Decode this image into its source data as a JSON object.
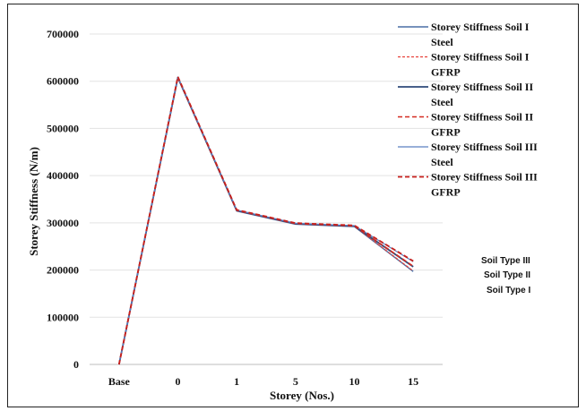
{
  "chart_data": {
    "type": "line",
    "xlabel": "Storey (Nos.)",
    "ylabel": "Storey Stiffness (N/m)",
    "categories": [
      "Base",
      "0",
      "1",
      "5",
      "10",
      "15"
    ],
    "ylim": [
      0,
      700000
    ],
    "yticks": [
      "0",
      "100000",
      "200000",
      "300000",
      "400000",
      "500000",
      "600000",
      "700000"
    ],
    "grid": "horizontal",
    "legend_position": "top-right",
    "series": [
      {
        "name": "Storey Stiffness Soil I Steel",
        "color": "#4a6fa5",
        "dash": "solid",
        "width": 1.4,
        "values": [
          0,
          607000,
          325000,
          297000,
          292000,
          197000
        ]
      },
      {
        "name": "Storey Stiffness Soil I GFRP",
        "color": "#e8423a",
        "dash": "dashed-fine",
        "width": 1.2,
        "values": [
          0,
          607500,
          325500,
          297500,
          292500,
          198000
        ]
      },
      {
        "name": "Storey Stiffness Soil II Steel",
        "color": "#2e4a7a",
        "dash": "solid",
        "width": 1.8,
        "values": [
          0,
          608000,
          326000,
          298000,
          293000,
          207000
        ]
      },
      {
        "name": "Storey Stiffness Soil II GFRP",
        "color": "#d42a20",
        "dash": "dashed",
        "width": 1.6,
        "values": [
          0,
          608500,
          326500,
          298500,
          293500,
          208000
        ]
      },
      {
        "name": "Storey Stiffness Soil III Steel",
        "color": "#5b7fc0",
        "dash": "solid",
        "width": 1.2,
        "values": [
          0,
          609000,
          327000,
          299000,
          294000,
          218000
        ]
      },
      {
        "name": "Storey Stiffness Soil III GFRP",
        "color": "#c8201c",
        "dash": "dashed",
        "width": 1.8,
        "values": [
          0,
          609500,
          327500,
          299500,
          294500,
          219000
        ]
      }
    ],
    "annotations": [
      "Soil Type III",
      "Soil Type II",
      "Soil Type I"
    ]
  }
}
